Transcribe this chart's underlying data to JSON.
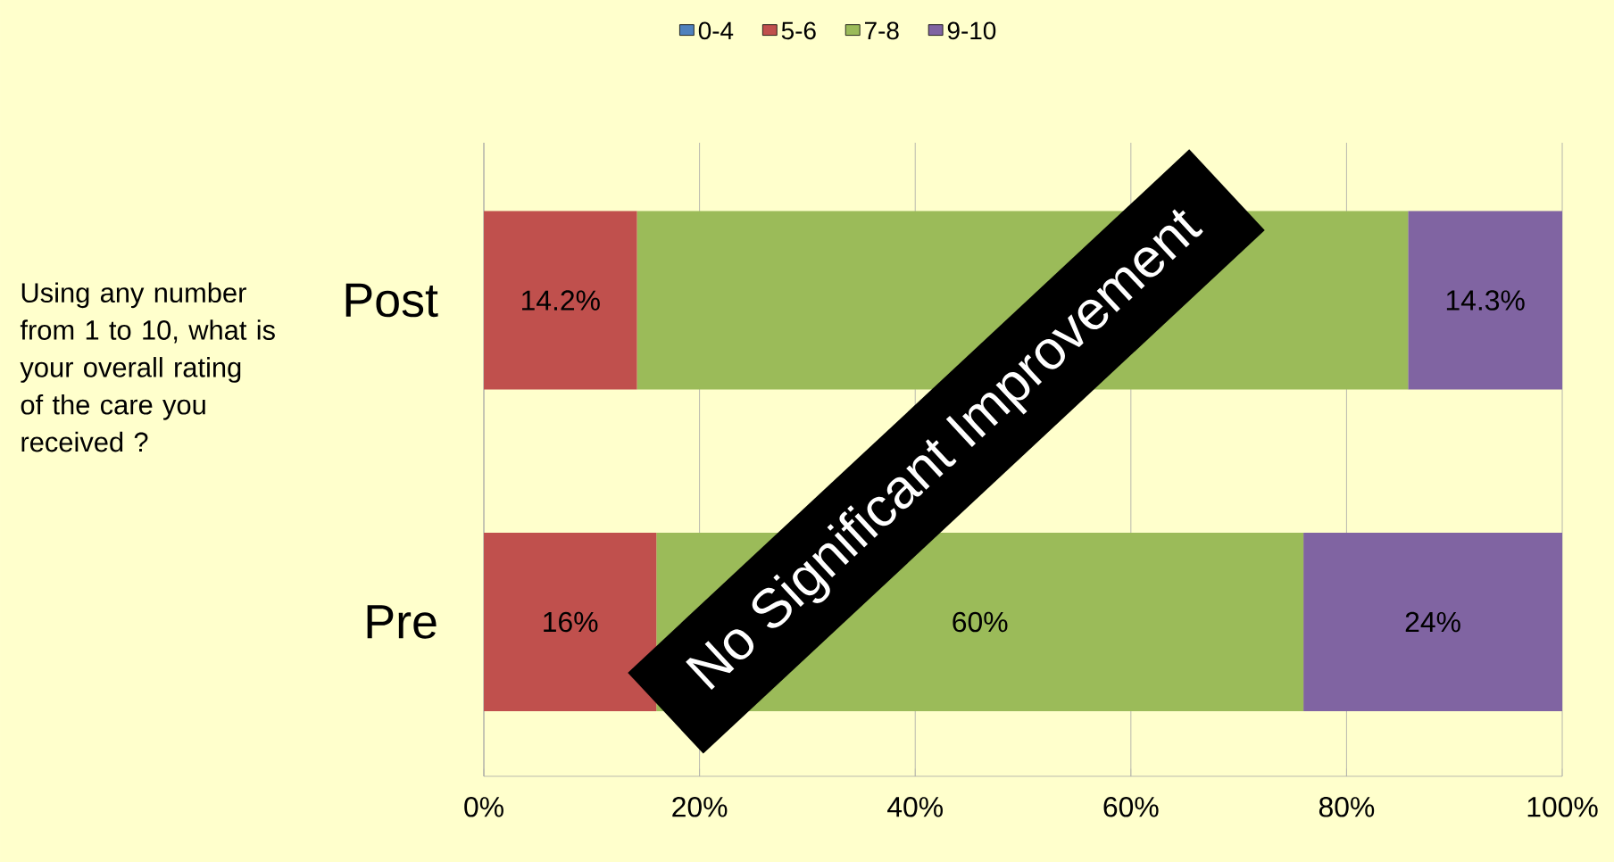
{
  "chart_data": {
    "type": "bar",
    "orientation": "horizontal",
    "stacked": true,
    "categories": [
      "Post",
      "Pre"
    ],
    "series": [
      {
        "name": "0-4",
        "color": "#4f81bd",
        "values": [
          0,
          0
        ],
        "value_labels": [
          null,
          null
        ]
      },
      {
        "name": "5-6",
        "color": "#c0504d",
        "values": [
          14.2,
          16
        ],
        "value_labels": [
          "14.2%",
          "16%"
        ]
      },
      {
        "name": "7-8",
        "color": "#9bbb59",
        "values": [
          71.5,
          60
        ],
        "value_labels": [
          null,
          "60%"
        ]
      },
      {
        "name": "9-10",
        "color": "#8064a2",
        "values": [
          14.3,
          24
        ],
        "value_labels": [
          "14.3%",
          "24%"
        ]
      }
    ],
    "xlim": [
      0,
      100
    ],
    "xticks": [
      {
        "value": 0,
        "label": "0%"
      },
      {
        "value": 20,
        "label": "20%"
      },
      {
        "value": 40,
        "label": "40%"
      },
      {
        "value": 60,
        "label": "60%"
      },
      {
        "value": 80,
        "label": "80%"
      },
      {
        "value": 100,
        "label": "100%"
      }
    ],
    "grid": "x",
    "legend": "top",
    "annotations": [
      "Using any number from 1 to 10, what is your overall rating of the care you received ?",
      "No Significant Improvement"
    ]
  }
}
